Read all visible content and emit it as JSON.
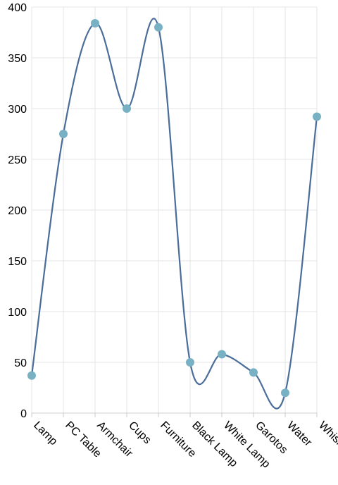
{
  "chart_data": {
    "type": "line",
    "smooth": true,
    "categories": [
      "Lamp",
      "PC Table",
      "Armchair",
      "Cups",
      "Furniture",
      "Black Lamp",
      "White Lamp",
      "Garotos",
      "Water",
      "Whisky"
    ],
    "values": [
      37,
      275,
      384,
      300,
      380,
      50,
      58,
      40,
      20,
      292
    ],
    "ylim": [
      0,
      400
    ],
    "yticks": [
      0,
      50,
      100,
      150,
      200,
      250,
      300,
      350,
      400
    ],
    "grid": true,
    "colors": {
      "line": "#4a6d9a",
      "point": "#78b1c4"
    }
  }
}
